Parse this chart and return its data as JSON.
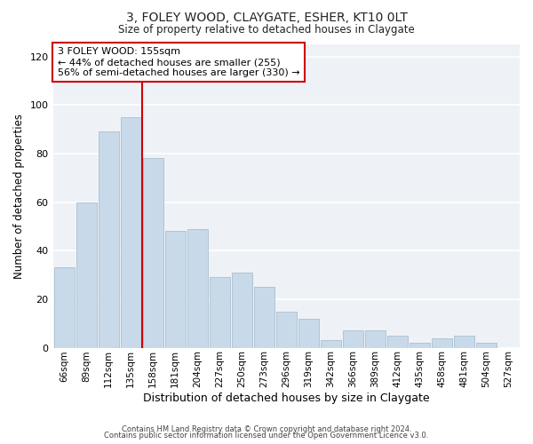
{
  "title": "3, FOLEY WOOD, CLAYGATE, ESHER, KT10 0LT",
  "subtitle": "Size of property relative to detached houses in Claygate",
  "xlabel": "Distribution of detached houses by size in Claygate",
  "ylabel": "Number of detached properties",
  "bar_color": "#c8daea",
  "bar_edge_color": "#aabfce",
  "background_color": "#ffffff",
  "plot_bg_color": "#eef2f7",
  "categories": [
    "66sqm",
    "89sqm",
    "112sqm",
    "135sqm",
    "158sqm",
    "181sqm",
    "204sqm",
    "227sqm",
    "250sqm",
    "273sqm",
    "296sqm",
    "319sqm",
    "342sqm",
    "366sqm",
    "389sqm",
    "412sqm",
    "435sqm",
    "458sqm",
    "481sqm",
    "504sqm",
    "527sqm"
  ],
  "values": [
    33,
    60,
    89,
    95,
    78,
    48,
    49,
    29,
    31,
    25,
    15,
    12,
    3,
    7,
    7,
    5,
    2,
    4,
    5,
    2,
    0
  ],
  "vline_x_index": 4,
  "vline_color": "#cc0000",
  "annotation_line1": "3 FOLEY WOOD: 155sqm",
  "annotation_line2": "← 44% of detached houses are smaller (255)",
  "annotation_line3": "56% of semi-detached houses are larger (330) →",
  "annotation_box_color": "#ffffff",
  "annotation_box_edge_color": "#cc0000",
  "ylim": [
    0,
    125
  ],
  "yticks": [
    0,
    20,
    40,
    60,
    80,
    100,
    120
  ],
  "footer1": "Contains HM Land Registry data © Crown copyright and database right 2024.",
  "footer2": "Contains public sector information licensed under the Open Government Licence v3.0."
}
